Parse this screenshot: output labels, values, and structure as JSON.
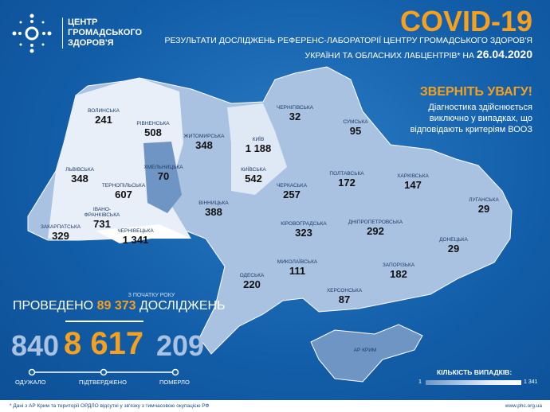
{
  "header": {
    "org": [
      "ЦЕНТР",
      "ГРОМАДСЬКОГО",
      "ЗДОРОВ'Я"
    ],
    "title": "COVID-19",
    "subtitle_line1": "РЕЗУЛЬТАТИ ДОСЛІДЖЕНЬ РЕФЕРЕНС-ЛАБОРАТОРІЇ ЦЕНТРУ ГРОМАДСЬКОГО ЗДОРОВ'Я",
    "subtitle_line2": "УКРАЇНИ ТА ОБЛАСНИХ ЛАБЦЕНТРІВ* НА",
    "date": "26.04.2020"
  },
  "attention": {
    "heading": "ЗВЕРНІТЬ УВАГУ!",
    "text": "Діагностика здійснюється виключно у випадках, що відповідають критеріям ВООЗ"
  },
  "regions": [
    {
      "name": "Волинська",
      "cases": "241"
    },
    {
      "name": "Рівненська",
      "cases": "508"
    },
    {
      "name": "Житомирська",
      "cases": "348"
    },
    {
      "name": "Київ",
      "cases": "1 188"
    },
    {
      "name": "Чернігівська",
      "cases": "32"
    },
    {
      "name": "Сумська",
      "cases": "95"
    },
    {
      "name": "Львівська",
      "cases": "348"
    },
    {
      "name": "Тернопільська",
      "cases": "607"
    },
    {
      "name": "Хмельницька",
      "cases": "70"
    },
    {
      "name": "Київська",
      "cases": "542"
    },
    {
      "name": "Черкаська",
      "cases": "257"
    },
    {
      "name": "Полтавська",
      "cases": "172"
    },
    {
      "name": "Харківська",
      "cases": "147"
    },
    {
      "name": "Луганська",
      "cases": "29"
    },
    {
      "name": "Івано-Франківська",
      "cases": "731"
    },
    {
      "name": "Вінницька",
      "cases": "388"
    },
    {
      "name": "Закарпатська",
      "cases": "329"
    },
    {
      "name": "Чернівецька",
      "cases": "1 341"
    },
    {
      "name": "Кіровоградська",
      "cases": "323"
    },
    {
      "name": "Дніпропетровська",
      "cases": "292"
    },
    {
      "name": "Донецька",
      "cases": "29"
    },
    {
      "name": "Одеська",
      "cases": "220"
    },
    {
      "name": "Миколаївська",
      "cases": "111"
    },
    {
      "name": "Запорізька",
      "cases": "182"
    },
    {
      "name": "Херсонська",
      "cases": "87"
    },
    {
      "name": "АР Крим",
      "cases": ""
    }
  ],
  "summary": {
    "since": "З ПОЧАТКУ РОКУ",
    "tests_prefix": "ПРОВЕДЕНО",
    "tests": "89 373",
    "tests_suffix": "ДОСЛІДЖЕНЬ",
    "recovered": "840",
    "confirmed": "8 617",
    "deaths": "209",
    "recovered_label": "ОДУЖАЛО",
    "confirmed_label": "ПІДТВЕРДЖЕНО",
    "deaths_label": "ПОМЕРЛО"
  },
  "legend": {
    "title": "КІЛЬКІСТЬ ВИПАДКІВ:",
    "min": "1",
    "max": "1 341"
  },
  "footer": {
    "note": "* Дані з АР Крим та території ОРДЛО відсутні у зв'язку з тимчасовою окупацією РФ",
    "url": "www.phc.org.ua"
  },
  "colors": {
    "accent": "#f5a01f",
    "background": "#135ea9",
    "map_light": "#e8eff8",
    "map_dark": "#6f95c4"
  }
}
